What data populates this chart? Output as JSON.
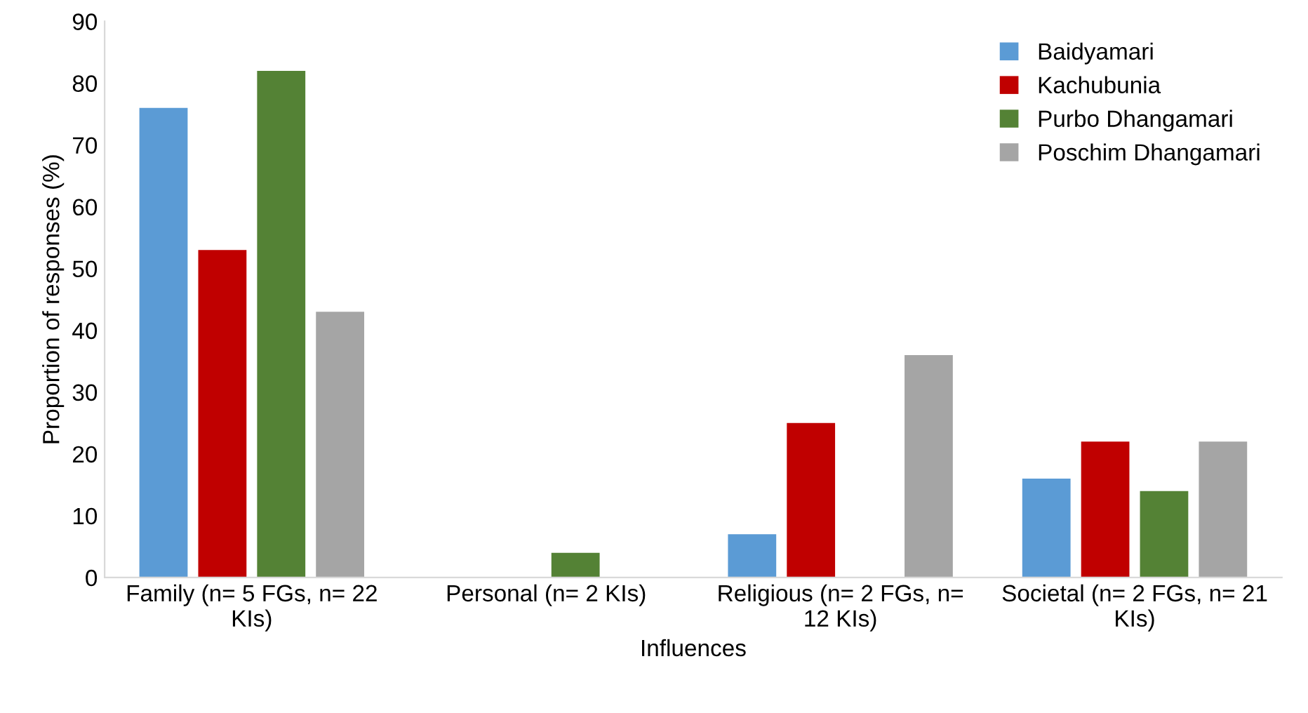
{
  "chart_data": {
    "type": "bar",
    "xlabel": "Influences",
    "ylabel": "Proportion of responses (%)",
    "categories": [
      "Family (n= 5 FGs, n= 22\nKIs)",
      "Personal (n= 2 KIs)",
      "Religious (n= 2 FGs, n=\n12 KIs)",
      "Societal (n= 2 FGs, n= 21\nKIs)"
    ],
    "series": [
      {
        "name": "Baidyamari",
        "color": "#5b9bd5",
        "values": [
          76,
          0,
          7,
          16
        ]
      },
      {
        "name": "Kachubunia",
        "color": "#c00000",
        "values": [
          53,
          0,
          25,
          22
        ]
      },
      {
        "name": "Purbo Dhangamari",
        "color": "#548235",
        "values": [
          82,
          4,
          0,
          14
        ]
      },
      {
        "name": "Poschim Dhangamari",
        "color": "#a5a5a5",
        "values": [
          43,
          0,
          36,
          22
        ]
      }
    ],
    "ylim": [
      0,
      90
    ],
    "yticks": [
      0,
      10,
      20,
      30,
      40,
      50,
      60,
      70,
      80,
      90
    ],
    "grid": false,
    "legend": "top right"
  }
}
